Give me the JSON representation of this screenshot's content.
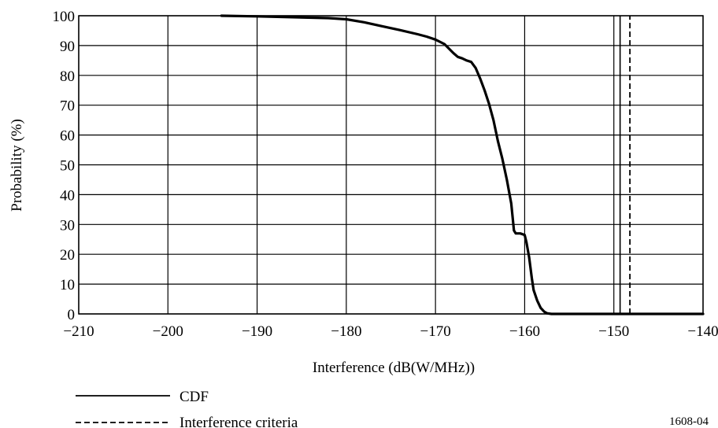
{
  "chart_data": {
    "type": "line",
    "title": "",
    "xlabel": "Interference (dB(W/MHz))",
    "ylabel": "Probability (%)",
    "xlim": [
      -210,
      -140
    ],
    "ylim": [
      0,
      100
    ],
    "x_ticks": [
      -210,
      -200,
      -190,
      -180,
      -170,
      -160,
      -150,
      -140
    ],
    "y_ticks": [
      0,
      10,
      20,
      30,
      40,
      50,
      60,
      70,
      80,
      90,
      100
    ],
    "x_tick_labels": [
      "−210",
      "−200",
      "−190",
      "−180",
      "−170",
      "−160",
      "−150",
      "−140"
    ],
    "y_tick_labels": [
      "0",
      "10",
      "20",
      "30",
      "40",
      "50",
      "60",
      "70",
      "80",
      "90",
      "100"
    ],
    "grid": true,
    "legend_position": "bottom-left",
    "series": [
      {
        "name": "CDF",
        "style": "solid",
        "x": [
          -194,
          -190,
          -186,
          -182,
          -180,
          -178,
          -176,
          -174,
          -172,
          -171,
          -170,
          -169,
          -168,
          -167.5,
          -167,
          -166.5,
          -166,
          -165.5,
          -165,
          -164.5,
          -164,
          -163.5,
          -163,
          -162.5,
          -162,
          -161.5,
          -161.2,
          -161,
          -160.5,
          -160,
          -159.8,
          -159.5,
          -159.2,
          -159,
          -158.6,
          -158.2,
          -157.8,
          -157.5,
          -157,
          -156,
          -150,
          -140
        ],
        "y": [
          100,
          99.8,
          99.5,
          99.2,
          98.8,
          97.8,
          96.5,
          95.2,
          93.8,
          93,
          92,
          90.5,
          87.5,
          86.2,
          85.7,
          85,
          84.5,
          82.5,
          79,
          75,
          70.5,
          65,
          58,
          52,
          45,
          37,
          28,
          27,
          27,
          26.5,
          24,
          19,
          12,
          8,
          4.5,
          2,
          0.7,
          0.2,
          0,
          0,
          0,
          0
        ]
      },
      {
        "name": "Interference criteria",
        "style": "dashed",
        "x": [
          -148.2,
          -148.2
        ],
        "y": [
          0,
          100
        ]
      }
    ],
    "annotations": [
      {
        "type": "vertical-line",
        "x": -149.3,
        "style": "solid",
        "y": [
          0,
          100
        ]
      }
    ],
    "figure_id": "1608-04"
  }
}
